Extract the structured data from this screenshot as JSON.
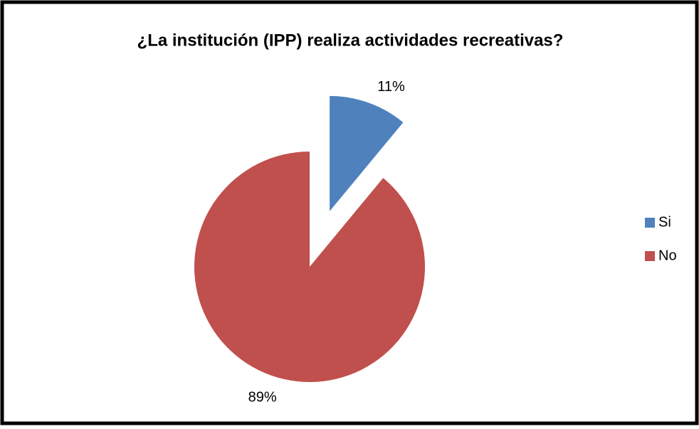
{
  "chart_data": {
    "type": "pie",
    "title": "¿La institución (IPP) realiza actividades recreativas?",
    "categories": [
      "Si",
      "No"
    ],
    "values": [
      11,
      89
    ],
    "value_labels": [
      "11%",
      "89%"
    ],
    "colors": [
      "#4f81bd",
      "#c0504d"
    ],
    "legend": "right"
  }
}
